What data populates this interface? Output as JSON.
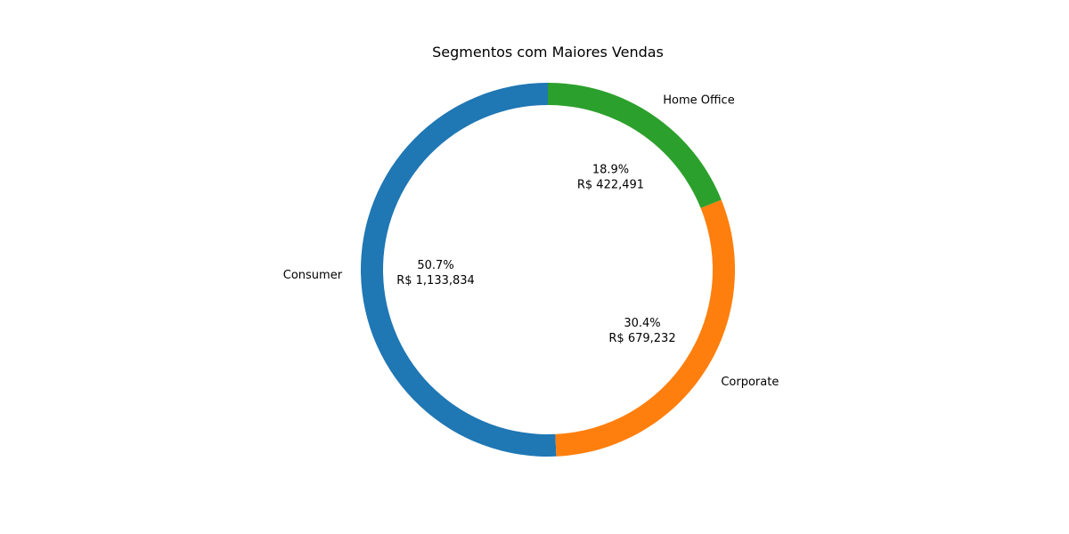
{
  "chart_data": {
    "type": "pie",
    "variant": "donut",
    "title": "Segmentos com Maiores Vendas",
    "start_angle_deg": 90,
    "direction": "counterclockwise",
    "slices": [
      {
        "label": "Consumer",
        "value": 1133834,
        "percent": "50.7%",
        "value_label": "R$ 1,133,834",
        "color": "#1f77b4"
      },
      {
        "label": "Corporate",
        "value": 679232,
        "percent": "30.4%",
        "value_label": "R$ 679,232",
        "color": "#ff7f0e"
      },
      {
        "label": "Home Office",
        "value": 422491,
        "percent": "18.9%",
        "value_label": "R$ 422,491",
        "color": "#2ca02c"
      }
    ]
  }
}
